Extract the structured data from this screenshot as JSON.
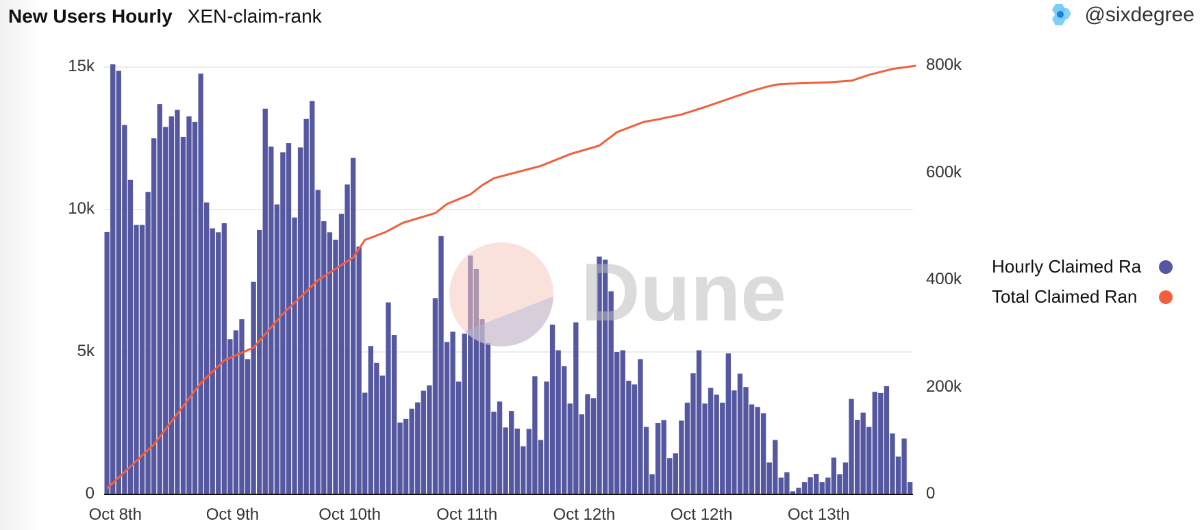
{
  "header": {
    "title": "New Users Hourly",
    "subtitle": "XEN-claim-rank",
    "author": "@sixdegree"
  },
  "watermark": "Dune",
  "colors": {
    "bars": "#5558a0",
    "line": "#f25f3d"
  },
  "chart_data": {
    "type": "bar+line",
    "title": "New Users Hourly",
    "x_tick_labels": [
      {
        "index": 0,
        "label": "Oct 8th"
      },
      {
        "index": 20,
        "label": "Oct 9th"
      },
      {
        "index": 40,
        "label": "Oct 10th"
      },
      {
        "index": 60,
        "label": "Oct 11th"
      },
      {
        "index": 80,
        "label": "Oct 12th"
      },
      {
        "index": 100,
        "label": "Oct 12th"
      },
      {
        "index": 120,
        "label": "Oct 13th"
      }
    ],
    "left_axis": {
      "ticks": [
        "0",
        "5k",
        "10k",
        "15k"
      ],
      "tick_values": [
        0,
        5000,
        10000,
        15000
      ],
      "ylim": [
        0,
        15000
      ]
    },
    "right_axis": {
      "ticks": [
        "0",
        "200k",
        "400k",
        "600k",
        "800k"
      ],
      "tick_values": [
        0,
        200000,
        400000,
        600000,
        800000
      ],
      "ylim": [
        0,
        800000
      ]
    },
    "legend": [
      "Hourly Claimed Ra",
      "Total Claimed Ran"
    ],
    "legend_position": "right",
    "grid": true,
    "series": [
      {
        "name": "Hourly Claimed Rank",
        "type": "bar",
        "axis": "left",
        "values": [
          9210,
          15100,
          14870,
          12970,
          11040,
          9460,
          9460,
          10620,
          12500,
          13700,
          12900,
          13270,
          13500,
          12550,
          13270,
          13080,
          14770,
          10250,
          9340,
          9200,
          9520,
          5450,
          5760,
          6150,
          4750,
          7460,
          9280,
          13540,
          12210,
          10180,
          12010,
          12330,
          9720,
          12180,
          13180,
          13810,
          10690,
          9590,
          9200,
          8940,
          9850,
          10880,
          11810,
          8700,
          3570,
          5210,
          4620,
          4170,
          6740,
          5600,
          2520,
          2650,
          3010,
          3230,
          3640,
          3830,
          6890,
          9070,
          5350,
          5710,
          3960,
          5640,
          8380,
          7910,
          6150,
          5320,
          2900,
          3260,
          2350,
          2930,
          2310,
          1690,
          2300,
          4150,
          1910,
          3960,
          5960,
          5060,
          4500,
          3190,
          6040,
          2810,
          3520,
          3380,
          8350,
          8240,
          7130,
          5000,
          5060,
          3990,
          3860,
          4750,
          2370,
          710,
          2500,
          2610,
          1270,
          1440,
          2590,
          3220,
          4250,
          5060,
          3190,
          3740,
          3500,
          3220,
          4950,
          3650,
          4240,
          3770,
          3160,
          3070,
          2850,
          1120,
          1910,
          590,
          780,
          110,
          230,
          430,
          600,
          720,
          430,
          590,
          1290,
          710,
          1120,
          3350,
          2620,
          2870,
          2370,
          3600,
          3560,
          3800,
          2140,
          1330,
          1960,
          430
        ]
      },
      {
        "name": "Total Claimed Rank",
        "type": "line",
        "axis": "right",
        "points": [
          [
            0,
            11000
          ],
          [
            8,
            93000
          ],
          [
            16,
            208000
          ],
          [
            20,
            250000
          ],
          [
            25,
            274000
          ],
          [
            30,
            337000
          ],
          [
            36,
            400000
          ],
          [
            42,
            442000
          ],
          [
            44,
            475000
          ],
          [
            47.4,
            489000
          ],
          [
            50.5,
            507000
          ],
          [
            56,
            525000
          ],
          [
            58,
            542000
          ],
          [
            62,
            560000
          ],
          [
            64,
            577000
          ],
          [
            66,
            590000
          ],
          [
            74,
            613000
          ],
          [
            79,
            635000
          ],
          [
            84,
            651000
          ],
          [
            87,
            676000
          ],
          [
            91.5,
            695000
          ],
          [
            94,
            700000
          ],
          [
            98,
            709000
          ],
          [
            102,
            723000
          ],
          [
            106,
            738000
          ],
          [
            110,
            753000
          ],
          [
            113,
            762000
          ],
          [
            115,
            766000
          ],
          [
            123,
            769000
          ],
          [
            127,
            772000
          ],
          [
            130,
            783000
          ],
          [
            134,
            794000
          ],
          [
            138,
            800000
          ]
        ]
      }
    ]
  }
}
